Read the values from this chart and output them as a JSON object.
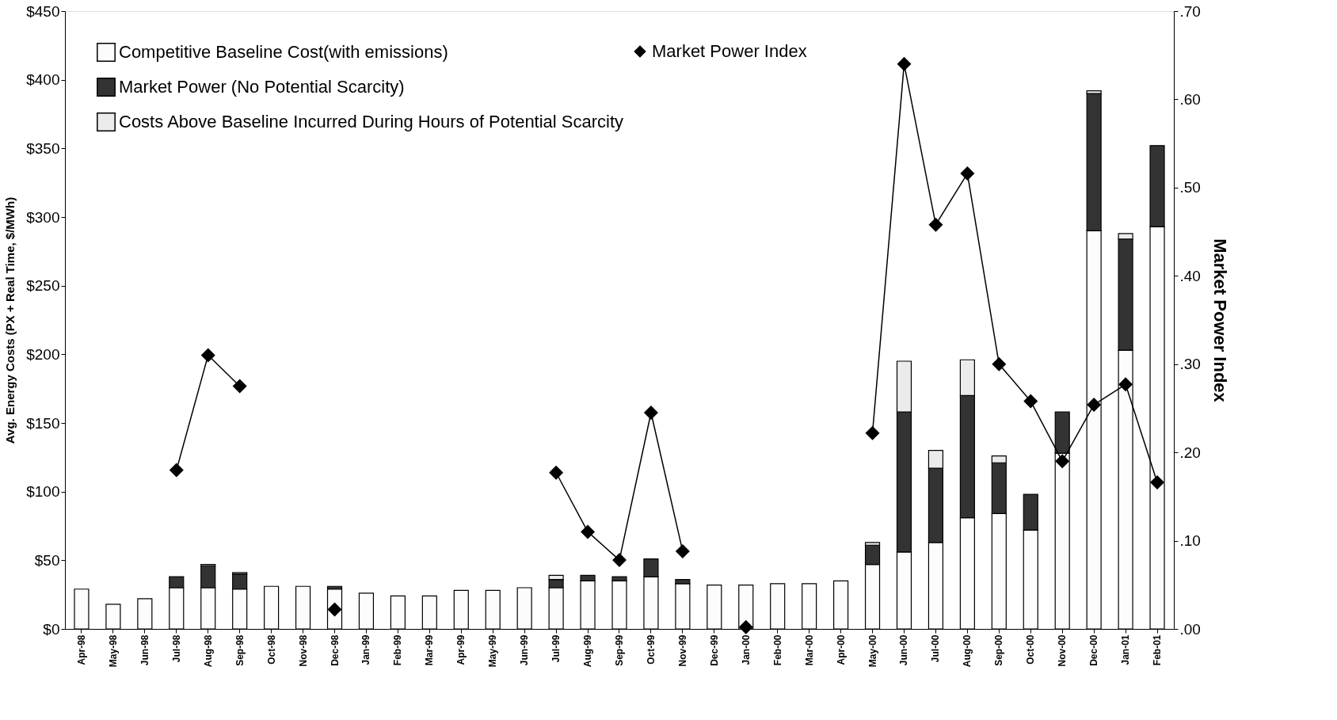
{
  "chart_data": {
    "type": "bar",
    "stacked": true,
    "categories": [
      "Apr-98",
      "May-98",
      "Jun-98",
      "Jul-98",
      "Aug-98",
      "Sep-98",
      "Oct-98",
      "Nov-98",
      "Dec-98",
      "Jan-99",
      "Feb-99",
      "Mar-99",
      "Apr-99",
      "May-99",
      "Jun-99",
      "Jul-99",
      "Aug-99",
      "Sep-99",
      "Oct-99",
      "Nov-99",
      "Dec-99",
      "Jan-00",
      "Feb-00",
      "Mar-00",
      "Apr-00",
      "May-00",
      "Jun-00",
      "Jul-00",
      "Aug-00",
      "Sep-00",
      "Oct-00",
      "Nov-00",
      "Dec-00",
      "Jan-01",
      "Feb-01"
    ],
    "series": [
      {
        "name": "Competitive Baseline Cost(with emissions)",
        "color": "#fcfcfc",
        "values": [
          29,
          18,
          22,
          30,
          30,
          29,
          31,
          31,
          29,
          26,
          24,
          24,
          28,
          28,
          30,
          30,
          35,
          35,
          38,
          33,
          32,
          32,
          33,
          33,
          35,
          47,
          56,
          63,
          81,
          84,
          72,
          128,
          290,
          203,
          293
        ]
      },
      {
        "name": "Market Power (No Potential Scarcity)",
        "color": "#333333",
        "values": [
          null,
          null,
          null,
          8,
          16,
          11,
          null,
          null,
          2,
          null,
          null,
          null,
          null,
          null,
          null,
          6,
          4,
          3,
          13,
          3,
          null,
          null,
          null,
          null,
          null,
          14,
          102,
          54,
          89,
          37,
          26,
          30,
          100,
          81,
          59
        ]
      },
      {
        "name": "Costs Above Baseline Incurred During Hours of Potential Scarcity",
        "color": "#ebebeb",
        "values": [
          null,
          null,
          null,
          null,
          1,
          1,
          null,
          null,
          null,
          null,
          null,
          null,
          null,
          null,
          null,
          3,
          null,
          null,
          null,
          null,
          null,
          null,
          null,
          null,
          null,
          2,
          37,
          13,
          26,
          5,
          null,
          null,
          2,
          4,
          null
        ]
      },
      {
        "name": "Market Power Index",
        "type": "line",
        "axis": "y2",
        "color": "#000000",
        "marker": "diamond",
        "values": [
          null,
          null,
          null,
          0.18,
          0.31,
          0.275,
          null,
          null,
          0.022,
          null,
          null,
          null,
          null,
          null,
          null,
          0.177,
          0.11,
          0.078,
          0.245,
          0.088,
          null,
          0.002,
          null,
          null,
          null,
          0.222,
          0.64,
          0.458,
          0.516,
          0.3,
          0.258,
          0.19,
          0.254,
          0.277,
          0.166
        ]
      }
    ],
    "ylabel": "Avg. Energy Costs (PX + Real Time, $/MWh)",
    "y2label": "Market Power Index",
    "ylim": [
      0,
      450
    ],
    "yticks": [
      {
        "value": 0,
        "label": "$0"
      },
      {
        "value": 50,
        "label": "$50"
      },
      {
        "value": 100,
        "label": "$100"
      },
      {
        "value": 150,
        "label": "$150"
      },
      {
        "value": 200,
        "label": "$200"
      },
      {
        "value": 250,
        "label": "$250"
      },
      {
        "value": 300,
        "label": "$300"
      },
      {
        "value": 350,
        "label": "$350"
      },
      {
        "value": 400,
        "label": "$400"
      },
      {
        "value": 450,
        "label": "$450"
      }
    ],
    "y2lim": [
      0,
      0.7
    ],
    "y2ticks": [
      {
        "value": 0,
        "label": ".00"
      },
      {
        "value": 0.1,
        "label": ".10"
      },
      {
        "value": 0.2,
        "label": ".20"
      },
      {
        "value": 0.3,
        "label": ".30"
      },
      {
        "value": 0.4,
        "label": ".40"
      },
      {
        "value": 0.5,
        "label": ".50"
      },
      {
        "value": 0.6,
        "label": ".60"
      },
      {
        "value": 0.7,
        "label": ".70"
      }
    ],
    "grid": false,
    "legend": "top left",
    "line_style": "solid"
  }
}
